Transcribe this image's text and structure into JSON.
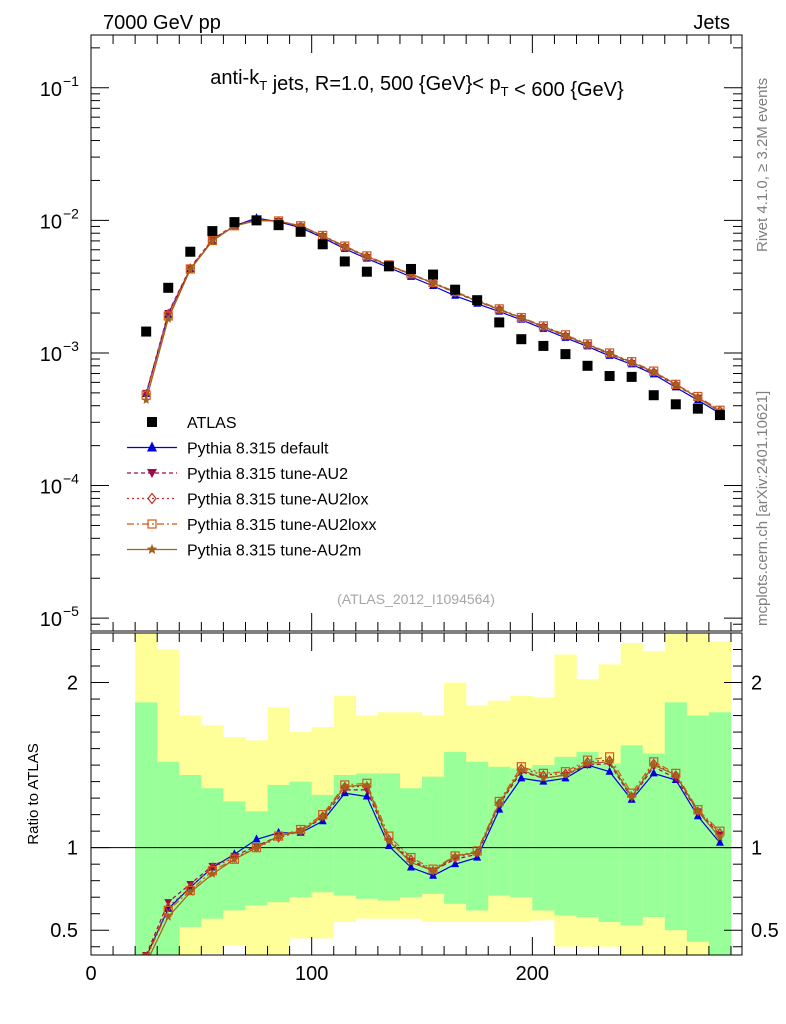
{
  "header": {
    "left": "7000 GeV pp",
    "right": "Jets",
    "side_top": "Rivet 4.1.0, ≥ 3.2M events",
    "side_bottom": "mcplots.cern.ch [arXiv:2401.10621]"
  },
  "chart_data": [
    {
      "type": "line",
      "panel": "main",
      "title": "anti-k_T jets, R=1.0, 500 {GeV}< p_T < 600 {GeV}",
      "watermark": "(ATLAS_2012_I1094564)",
      "yscale": "log",
      "ylim": [
        8e-06,
        0.25
      ],
      "xlim": [
        0,
        295
      ],
      "yticks": [
        {
          "value": 1e-05,
          "label": "10",
          "exp": "−5"
        },
        {
          "value": 0.0001,
          "label": "10",
          "exp": "−4"
        },
        {
          "value": 0.001,
          "label": "10",
          "exp": "−3"
        },
        {
          "value": 0.01,
          "label": "10",
          "exp": "−2"
        },
        {
          "value": 0.1,
          "label": "10",
          "exp": "−1"
        }
      ],
      "legend_position": "bottom-left",
      "x": [
        25,
        35,
        45,
        55,
        65,
        75,
        85,
        95,
        105,
        115,
        125,
        135,
        145,
        155,
        165,
        175,
        185,
        195,
        205,
        215,
        225,
        235,
        245,
        255,
        265,
        275,
        285
      ],
      "data": {
        "name": "ATLAS",
        "values": [
          0.00145,
          0.0031,
          0.0058,
          0.0083,
          0.0097,
          0.01,
          0.0092,
          0.0082,
          0.0066,
          0.0049,
          0.0041,
          0.0045,
          0.0043,
          0.0039,
          0.003,
          0.0025,
          0.0017,
          0.00127,
          0.00113,
          0.00098,
          0.0008,
          0.00067,
          0.00066,
          0.00048,
          0.00041,
          0.00038,
          0.00034
        ]
      },
      "series": [
        {
          "name": "Pythia 8.315 default",
          "color": "#0000dd",
          "dash": "",
          "marker": "triangle-up",
          "values": [
            0.00049,
            0.00195,
            0.0043,
            0.007,
            0.0091,
            0.0104,
            0.00975,
            0.0088,
            0.0074,
            0.0061,
            0.00515,
            0.0044,
            0.00375,
            0.0032,
            0.0027,
            0.00235,
            0.00205,
            0.00178,
            0.00152,
            0.0013,
            0.00112,
            0.00095,
            0.00082,
            0.00069,
            0.00055,
            0.00044,
            0.00035
          ]
        },
        {
          "name": "Pythia 8.315 tune-AU2",
          "color": "#9e0a4a",
          "dash": "4,3",
          "marker": "triangle-down",
          "values": [
            0.0005,
            0.002,
            0.0044,
            0.0072,
            0.0092,
            0.0101,
            0.0099,
            0.009,
            0.0076,
            0.0063,
            0.0053,
            0.00455,
            0.0039,
            0.00335,
            0.00285,
            0.00245,
            0.00212,
            0.00183,
            0.00157,
            0.00134,
            0.00115,
            0.00098,
            0.00084,
            0.00071,
            0.00057,
            0.00046,
            0.00036
          ]
        },
        {
          "name": "Pythia 8.315 tune-AU2lox",
          "color": "#c0302a",
          "dash": "2,3",
          "marker": "diamond",
          "values": [
            0.00049,
            0.00198,
            0.00435,
            0.00715,
            0.00915,
            0.01,
            0.00985,
            0.00905,
            0.00765,
            0.00635,
            0.00535,
            0.00458,
            0.00392,
            0.00337,
            0.00287,
            0.00247,
            0.00214,
            0.00184,
            0.00158,
            0.00135,
            0.00116,
            0.00099,
            0.00085,
            0.00072,
            0.00058,
            0.00046,
            0.00037
          ]
        },
        {
          "name": "Pythia 8.315 tune-AU2loxx",
          "color": "#d0591c",
          "dash": "7,3,2,3",
          "marker": "square-open",
          "values": [
            0.00048,
            0.0019,
            0.0043,
            0.00705,
            0.0091,
            0.01,
            0.0099,
            0.0091,
            0.0077,
            0.0064,
            0.0054,
            0.00462,
            0.00395,
            0.0034,
            0.0029,
            0.0025,
            0.00215,
            0.00185,
            0.0016,
            0.00137,
            0.00117,
            0.001,
            0.00086,
            0.00073,
            0.00058,
            0.00047,
            0.00037
          ]
        },
        {
          "name": "Pythia 8.315 tune-AU2m",
          "color": "#a0621c",
          "dash": "",
          "marker": "star",
          "values": [
            0.00044,
            0.0018,
            0.00425,
            0.007,
            0.00905,
            0.00995,
            0.00985,
            0.00905,
            0.00765,
            0.00635,
            0.00535,
            0.00458,
            0.00392,
            0.00337,
            0.00287,
            0.00247,
            0.00213,
            0.00184,
            0.00158,
            0.00135,
            0.00116,
            0.00099,
            0.00085,
            0.00072,
            0.00058,
            0.00046,
            0.00036
          ]
        }
      ]
    },
    {
      "type": "line",
      "panel": "ratio",
      "ylabel": "Ratio to ATLAS",
      "ylim": [
        0.35,
        2.3
      ],
      "xlim": [
        0,
        295
      ],
      "yticks": [
        0.5,
        1,
        2
      ],
      "ytick_labels": [
        "0.5",
        "1",
        "2"
      ],
      "xticks": [
        0,
        100,
        200
      ],
      "xtick_labels": [
        "0",
        "100",
        "200"
      ],
      "reference_line": 1,
      "bands": {
        "x_edges": [
          20,
          30,
          40,
          50,
          60,
          70,
          80,
          90,
          100,
          110,
          120,
          130,
          140,
          150,
          160,
          170,
          180,
          190,
          200,
          210,
          220,
          230,
          240,
          250,
          260,
          270,
          280,
          290
        ],
        "green_lo": [
          0.3,
          0.35,
          0.52,
          0.57,
          0.62,
          0.65,
          0.67,
          0.7,
          0.73,
          0.71,
          0.69,
          0.68,
          0.7,
          0.72,
          0.66,
          0.62,
          0.71,
          0.7,
          0.62,
          0.59,
          0.58,
          0.55,
          0.53,
          0.58,
          0.5,
          0.43,
          0.33
        ],
        "green_hi": [
          1.88,
          1.52,
          1.44,
          1.36,
          1.28,
          1.22,
          1.38,
          1.4,
          1.32,
          1.44,
          1.45,
          1.45,
          1.36,
          1.43,
          1.58,
          1.52,
          1.49,
          1.48,
          1.5,
          1.55,
          1.58,
          1.51,
          1.62,
          1.57,
          1.88,
          1.8,
          1.82
        ],
        "yellow_lo": [
          0.2,
          0.2,
          0.2,
          0.36,
          0.41,
          0.3,
          0.3,
          0.45,
          0.45,
          0.55,
          0.57,
          0.57,
          0.57,
          0.55,
          0.55,
          0.55,
          0.55,
          0.55,
          0.56,
          0.4,
          0.4,
          0.4,
          0.35,
          0.31,
          0.2,
          0.2,
          0.2
        ],
        "yellow_hi": [
          2.5,
          2.2,
          1.8,
          1.74,
          1.67,
          1.65,
          1.85,
          1.7,
          1.73,
          1.92,
          1.8,
          1.82,
          1.82,
          1.8,
          2.0,
          1.86,
          1.89,
          1.92,
          1.91,
          2.17,
          2.02,
          2.11,
          2.24,
          2.19,
          2.35,
          2.5,
          2.25
        ]
      },
      "x": [
        25,
        35,
        45,
        55,
        65,
        75,
        85,
        95,
        105,
        115,
        125,
        135,
        145,
        155,
        165,
        175,
        185,
        195,
        205,
        215,
        225,
        235,
        245,
        255,
        265,
        275,
        285
      ],
      "series": [
        {
          "name": "Pythia 8.315 default",
          "values": [
            0.34,
            0.63,
            0.76,
            0.88,
            0.96,
            1.05,
            1.09,
            1.09,
            1.16,
            1.33,
            1.31,
            1.01,
            0.88,
            0.83,
            0.9,
            0.94,
            1.23,
            1.42,
            1.4,
            1.42,
            1.5,
            1.46,
            1.29,
            1.45,
            1.41,
            1.19,
            1.03
          ]
        },
        {
          "name": "Pythia 8.315 tune-AU2",
          "values": [
            0.35,
            0.67,
            0.78,
            0.89,
            0.95,
            1.01,
            1.07,
            1.1,
            1.18,
            1.35,
            1.35,
            1.04,
            0.92,
            0.86,
            0.93,
            0.96,
            1.26,
            1.46,
            1.42,
            1.44,
            1.5,
            1.51,
            1.3,
            1.49,
            1.42,
            1.22,
            1.08
          ]
        },
        {
          "name": "Pythia 8.315 tune-AU2lox",
          "values": [
            0.34,
            0.64,
            0.76,
            0.88,
            0.94,
            1.0,
            1.06,
            1.1,
            1.19,
            1.37,
            1.37,
            1.05,
            0.93,
            0.86,
            0.94,
            0.97,
            1.27,
            1.48,
            1.44,
            1.45,
            1.52,
            1.53,
            1.31,
            1.51,
            1.44,
            1.22,
            1.09
          ]
        },
        {
          "name": "Pythia 8.315 tune-AU2loxx",
          "values": [
            0.33,
            0.62,
            0.74,
            0.86,
            0.93,
            1.0,
            1.07,
            1.11,
            1.2,
            1.38,
            1.39,
            1.07,
            0.94,
            0.87,
            0.95,
            0.98,
            1.28,
            1.49,
            1.45,
            1.46,
            1.53,
            1.55,
            1.33,
            1.52,
            1.45,
            1.23,
            1.1
          ]
        },
        {
          "name": "Pythia 8.315 tune-AU2m",
          "values": [
            0.3,
            0.58,
            0.73,
            0.84,
            0.93,
            1.0,
            1.07,
            1.1,
            1.19,
            1.37,
            1.38,
            1.04,
            0.91,
            0.86,
            0.95,
            0.97,
            1.27,
            1.47,
            1.42,
            1.44,
            1.51,
            1.52,
            1.31,
            1.5,
            1.44,
            1.22,
            1.06
          ]
        }
      ]
    }
  ]
}
